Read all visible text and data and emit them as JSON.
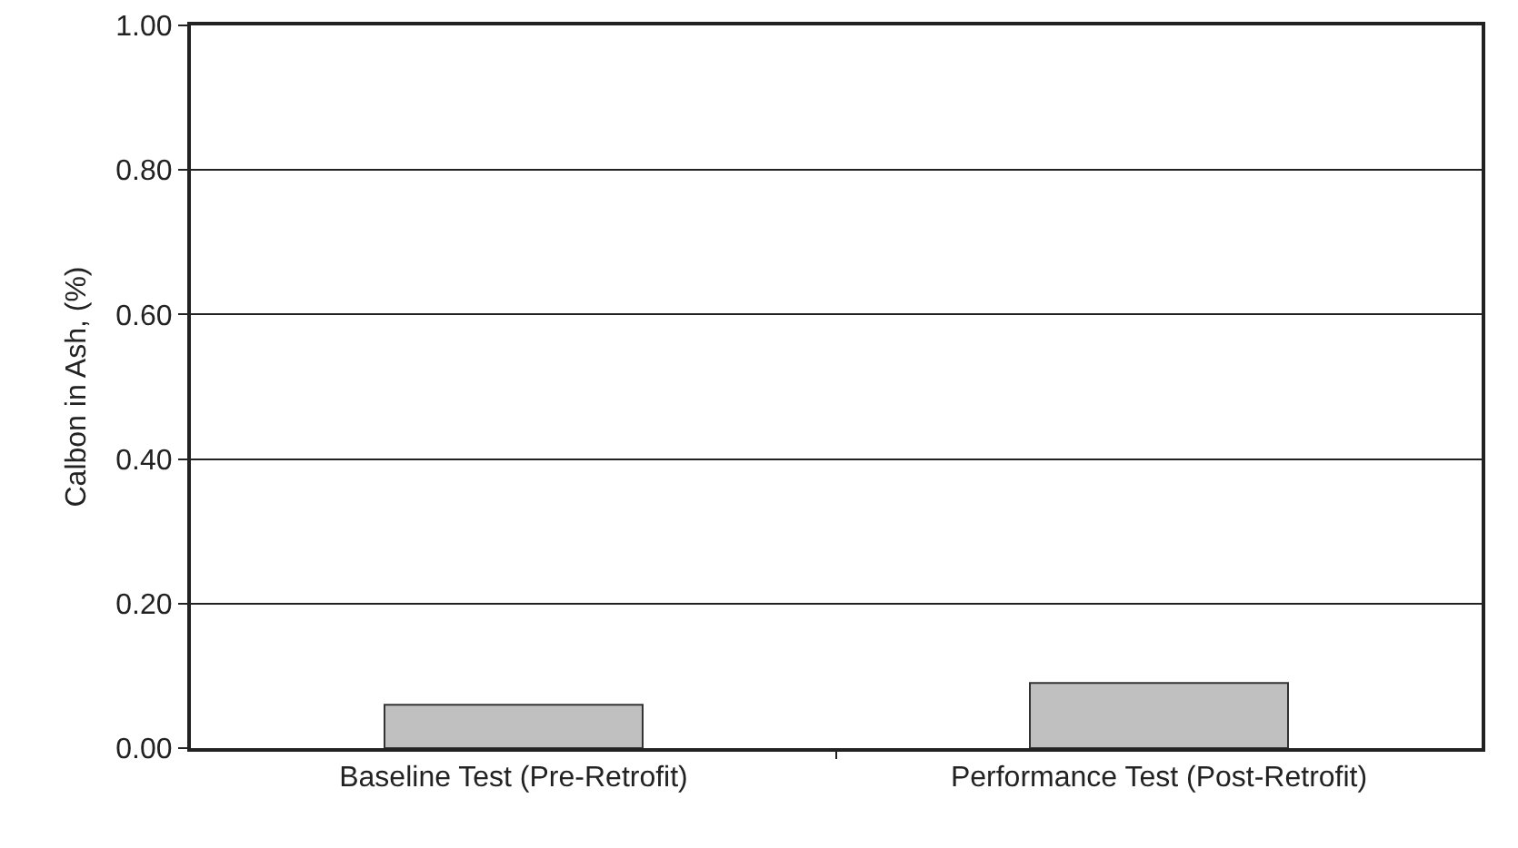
{
  "chart_data": {
    "type": "bar",
    "ylabel": "Calbon in Ash, (%)",
    "categories": [
      "Baseline Test (Pre-Retrofit)",
      "Performance Test (Post-Retrofit)"
    ],
    "values": [
      0.06,
      0.09
    ],
    "color": "#c0c0c0",
    "ylim": [
      0,
      1
    ],
    "yticks": [
      {
        "value": 0,
        "label": "0.00"
      },
      {
        "value": 0.2,
        "label": "0.20"
      },
      {
        "value": 0.4,
        "label": "0.40"
      },
      {
        "value": 0.6,
        "label": "0.60"
      },
      {
        "value": 0.8,
        "label": "0.80"
      },
      {
        "value": 1,
        "label": "1.00"
      }
    ],
    "grid": "y",
    "legend": false
  }
}
